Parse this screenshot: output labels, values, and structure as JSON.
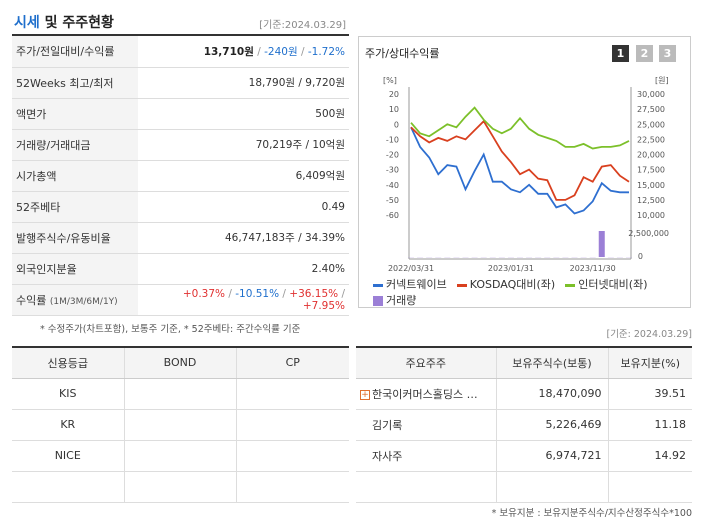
{
  "header": {
    "title_accent": "시세",
    "title_rest": " 및 주주현황",
    "as_of": "[기준:2024.03.29]"
  },
  "quote": {
    "rows": [
      {
        "label": "주가/전일대비/수익률",
        "price": "13,710원",
        "change": "-240원",
        "rate": "-1.72%"
      },
      {
        "label": "52Weeks 최고/최저",
        "value": "18,790원 / 9,720원"
      },
      {
        "label": "액면가",
        "value": "500원"
      },
      {
        "label": "거래량/거래대금",
        "value": "70,219주 / 10억원"
      },
      {
        "label": "시가총액",
        "value": "6,409억원"
      },
      {
        "label": "52주베타",
        "value": "0.49"
      },
      {
        "label": "발행주식수/유동비율",
        "value": "46,747,183주 / 34.39%"
      },
      {
        "label": "외국인지분율",
        "value": "2.40%"
      },
      {
        "label": "수익률",
        "label_small": "(1M/3M/6M/1Y)",
        "r1": "+0.37%",
        "r2": "-10.51%",
        "r3": "+36.15%",
        "r4": "+7.95%"
      }
    ]
  },
  "notes": {
    "quote_note": "* 수정주가(차트포함), 보통주 기준, * 52주베타: 주간수익률 기준",
    "as_of_2": "[기준: 2024.03.29]",
    "holder_note": "* 보유지분 : 보유지분주식수/지수산정주식수*100"
  },
  "chart_panel": {
    "title": "주가/상대수익률",
    "pages": [
      "1",
      "2",
      "3"
    ],
    "legend": [
      {
        "label": "커넥트웨이브",
        "color": "#2e6fd0"
      },
      {
        "label": "KOSDAQ대비(좌)",
        "color": "#d9401f"
      },
      {
        "label": "인터넷대비(좌)",
        "color": "#7cc02a"
      },
      {
        "label": "거래량",
        "color": "#9b7fd6"
      }
    ]
  },
  "chart_data": {
    "type": "line",
    "left_axis_unit": "[%]",
    "right_axis_unit": "[원]",
    "left_ticks": [
      "20",
      "10",
      "0",
      "-10",
      "-20",
      "-30",
      "-40",
      "-50",
      "-60"
    ],
    "right_ticks": [
      "30,000",
      "27,500",
      "25,000",
      "22,500",
      "20,000",
      "17,500",
      "15,000",
      "12,500",
      "10,000"
    ],
    "volume_ticks": [
      "2,500,000",
      "0"
    ],
    "x_labels": [
      "2022/03/31",
      "2023/01/31",
      "2023/11/30"
    ],
    "ylim_left": [
      -60,
      20
    ],
    "series": [
      {
        "name": "커넥트웨이브",
        "color": "#2e6fd0",
        "values": [
          -2,
          -15,
          -22,
          -33,
          -27,
          -28,
          -43,
          -31,
          -20,
          -38,
          -38,
          -43,
          -45,
          -40,
          -46,
          -46,
          -55,
          -53,
          -59,
          -57,
          -51,
          -39,
          -44,
          -45,
          -45
        ]
      },
      {
        "name": "KOSDAQ대비(좌)",
        "color": "#d9401f",
        "values": [
          -2,
          -8,
          -12,
          -9,
          -11,
          -8,
          -10,
          -4,
          2,
          -8,
          -18,
          -25,
          -33,
          -30,
          -36,
          -37,
          -50,
          -50,
          -47,
          -35,
          -38,
          -28,
          -27,
          -34,
          -38
        ]
      },
      {
        "name": "인터넷대비(좌)",
        "color": "#7cc02a",
        "values": [
          1,
          -6,
          -8,
          -4,
          0,
          -2,
          5,
          11,
          3,
          -3,
          -6,
          -3,
          4,
          -3,
          -7,
          -9,
          -11,
          -15,
          -15,
          -13,
          -16,
          -15,
          -15,
          -14,
          -11
        ]
      },
      {
        "name": "거래량",
        "color": "#9b7fd6",
        "type": "bar",
        "values": [
          0,
          0,
          0,
          0,
          0,
          0,
          0,
          0,
          0,
          0,
          0,
          0,
          0,
          0,
          0,
          0,
          0,
          0,
          0,
          0,
          0,
          2700000,
          0,
          0,
          0
        ]
      }
    ]
  },
  "credit": {
    "headers": [
      "신용등급",
      "BOND",
      "CP"
    ],
    "rows": [
      [
        "KIS",
        "",
        ""
      ],
      [
        "KR",
        "",
        ""
      ],
      [
        "NICE",
        "",
        ""
      ],
      [
        "",
        "",
        ""
      ]
    ]
  },
  "holders": {
    "headers": [
      "주요주주",
      "보유주식수(보통)",
      "보유지분(%)"
    ],
    "rows": [
      {
        "name": "한국이커머스홀딩스 …",
        "shares": "18,470,090",
        "pct": "39.51",
        "expand": "+"
      },
      {
        "name": "김기록",
        "shares": "5,226,469",
        "pct": "11.18",
        "expand": ""
      },
      {
        "name": "자사주",
        "shares": "6,974,721",
        "pct": "14.92",
        "expand": ""
      },
      {
        "name": "",
        "shares": "",
        "pct": "",
        "expand": ""
      }
    ]
  }
}
